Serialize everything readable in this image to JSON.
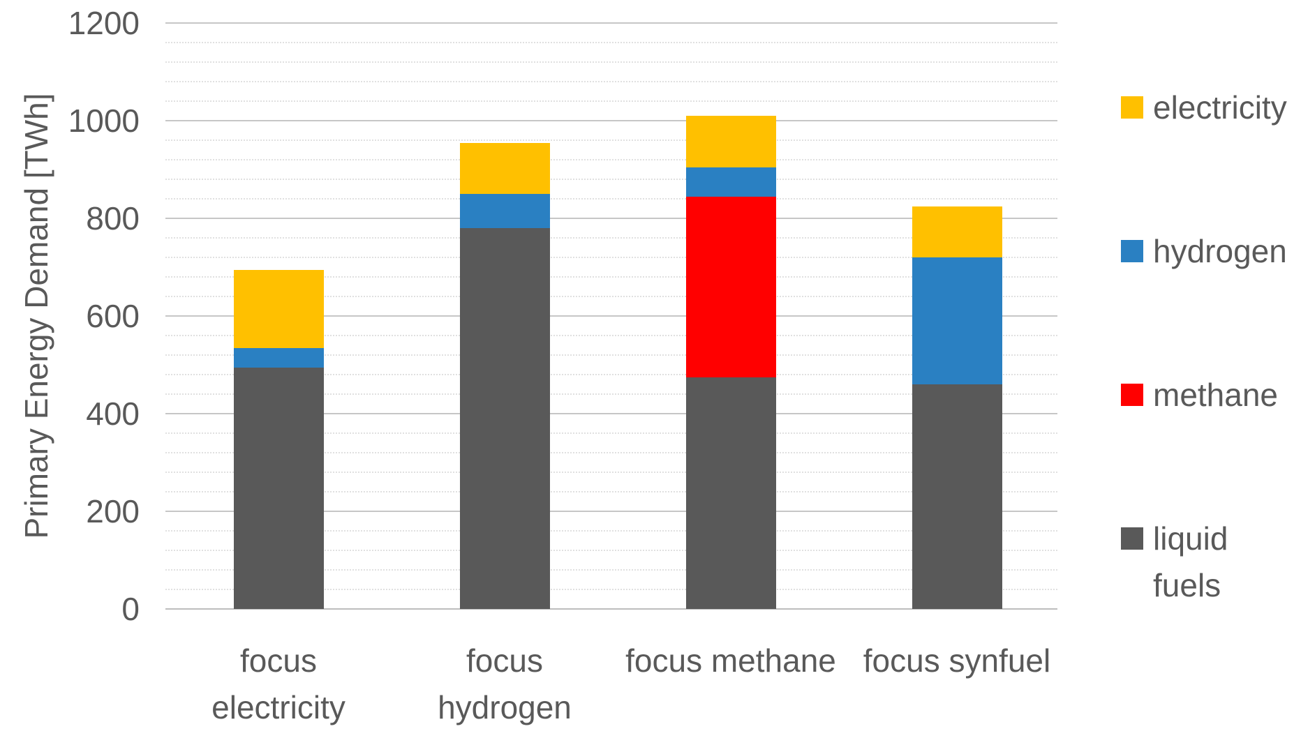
{
  "chart_data": {
    "type": "bar",
    "stacked": true,
    "title": "",
    "xlabel": "",
    "ylabel": "Primary Energy Demand [TWh]",
    "ylim": [
      0,
      1200
    ],
    "y_major_step": 200,
    "y_minor_step": 40,
    "yticks": [
      0,
      200,
      400,
      600,
      800,
      1000,
      1200
    ],
    "grid": {
      "major_color": "#c6c6c6",
      "minor_color": "#e0e0e0",
      "minor_style": "dotted",
      "axis_color": "#bdbdbd",
      "grid_on": true
    },
    "categories": [
      "focus electricity",
      "focus hydrogen",
      "focus methane",
      "focus synfuel"
    ],
    "category_label_lines": [
      [
        "focus",
        "electricity"
      ],
      [
        "focus",
        "hydrogen"
      ],
      [
        "focus methane"
      ],
      [
        "focus synfuel"
      ]
    ],
    "series": [
      {
        "name": "liquid fuels",
        "color": "#595959",
        "values": [
          495,
          780,
          475,
          460
        ]
      },
      {
        "name": "methane",
        "color": "#ff0000",
        "values": [
          0,
          0,
          370,
          0
        ]
      },
      {
        "name": "hydrogen",
        "color": "#2a80c2",
        "values": [
          40,
          70,
          60,
          260
        ]
      },
      {
        "name": "electricity",
        "color": "#ffc000",
        "values": [
          160,
          105,
          105,
          105
        ]
      }
    ],
    "totals": [
      695,
      955,
      1010,
      825
    ],
    "legend": {
      "position": "right",
      "entries": [
        {
          "label": "electricity",
          "label_lines": [
            "electricity"
          ],
          "color": "#ffc000"
        },
        {
          "label": "hydrogen",
          "label_lines": [
            "hydrogen"
          ],
          "color": "#2a80c2"
        },
        {
          "label": "methane",
          "label_lines": [
            "methane"
          ],
          "color": "#ff0000"
        },
        {
          "label": "liquid fuels",
          "label_lines": [
            "liquid",
            "fuels"
          ],
          "color": "#595959"
        }
      ]
    },
    "text_color": "#595959",
    "background": "#ffffff"
  }
}
